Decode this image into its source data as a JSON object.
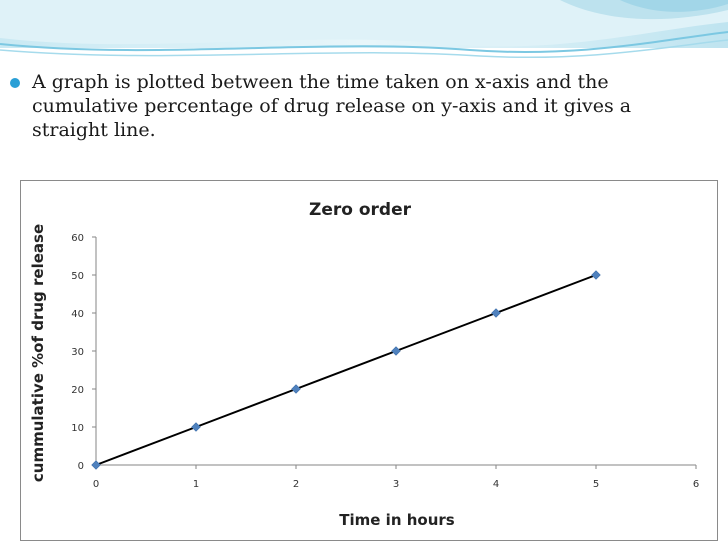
{
  "slide": {
    "bullet_text": "A graph is plotted between the time taken on x-axis and the cumulative percentage of drug release on y-axis and it gives a straight line.",
    "accent_color": "#2a9fd6"
  },
  "chart_data": {
    "type": "line",
    "title": "Zero order",
    "xlabel": "Time in hours",
    "ylabel": "cummulative %of drug release",
    "x": [
      0,
      1,
      2,
      3,
      4,
      5
    ],
    "series": [
      {
        "values": [
          0,
          10,
          20,
          30,
          40,
          50
        ]
      }
    ],
    "xlim": [
      0,
      6
    ],
    "ylim": [
      0,
      60
    ],
    "xticks": [
      "0",
      "1",
      "2",
      "3",
      "4",
      "5",
      "6"
    ],
    "yticks": [
      "0",
      "10",
      "20",
      "30",
      "40",
      "50",
      "60"
    ],
    "grid": false,
    "marker": "diamond",
    "line_color": "#000000",
    "marker_color": "#4f81bd"
  }
}
